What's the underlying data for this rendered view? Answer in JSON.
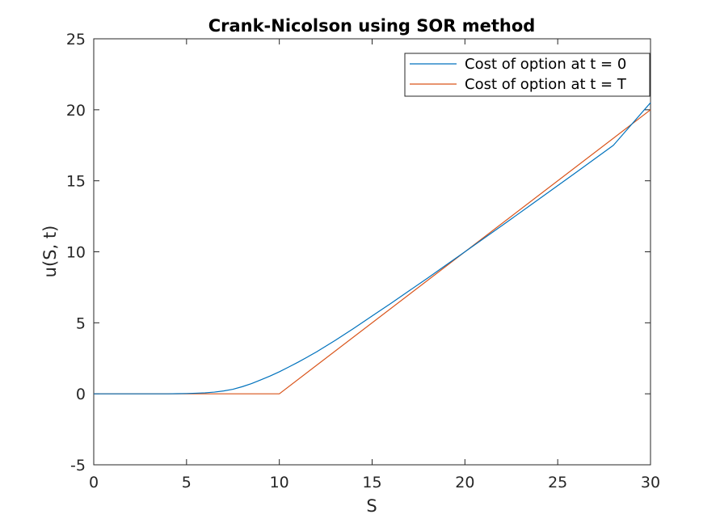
{
  "chart_data": {
    "type": "line",
    "title": "Crank-Nicolson using SOR method",
    "xlabel": "S",
    "ylabel": "u(S, t)",
    "xlim": [
      0,
      30
    ],
    "ylim": [
      -5,
      25
    ],
    "xticks": [
      0,
      5,
      10,
      15,
      20,
      25,
      30
    ],
    "yticks": [
      -5,
      0,
      5,
      10,
      15,
      20,
      25
    ],
    "grid": false,
    "legend_position": "top-right",
    "series": [
      {
        "name": "Cost of option at t = 0",
        "color": "#0072BD",
        "x": [
          0,
          2,
          4,
          4.5,
          5,
          5.5,
          6,
          6.5,
          7,
          7.5,
          8,
          8.5,
          9,
          9.5,
          10,
          10.5,
          11,
          11.5,
          12,
          13,
          14,
          15,
          16,
          17,
          18,
          19,
          20,
          22,
          24,
          26,
          28,
          30
        ],
        "values": [
          0,
          0,
          0,
          0.01,
          0.02,
          0.04,
          0.07,
          0.12,
          0.2,
          0.32,
          0.5,
          0.72,
          0.98,
          1.25,
          1.55,
          1.88,
          2.22,
          2.58,
          2.95,
          3.75,
          4.6,
          5.48,
          6.36,
          7.26,
          8.16,
          9.08,
          10.0,
          11.85,
          13.72,
          15.6,
          17.5,
          20.5
        ]
      },
      {
        "name": "Cost of option at t = T",
        "color": "#D95319",
        "x": [
          0,
          10,
          30
        ],
        "values": [
          0,
          0,
          20
        ]
      }
    ]
  }
}
